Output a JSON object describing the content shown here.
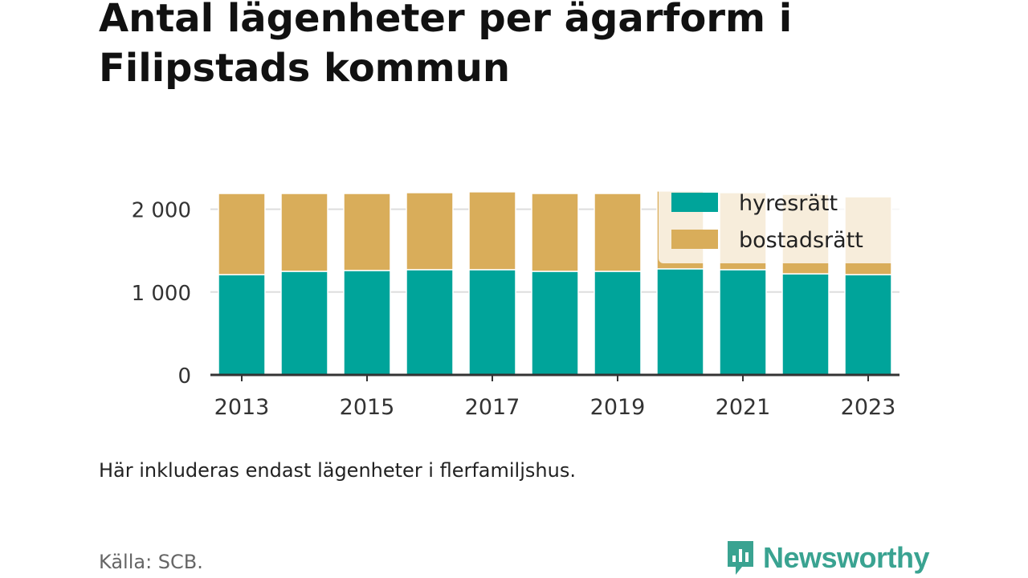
{
  "title": "Antal lägenheter per ägarform i Filipstads kommun",
  "note": "Här inkluderas endast lägenheter i flerfamiljshus.",
  "source": "Källa: SCB.",
  "brand": "Newsworthy",
  "colors": {
    "hyresratt": "#00a49a",
    "bostadsratt": "#d9ad5a",
    "grid": "#dddddd",
    "axis": "#333333",
    "brand": "#3aa391"
  },
  "chart_data": {
    "type": "bar",
    "stacked": true,
    "categories": [
      "2013",
      "2014",
      "2015",
      "2016",
      "2017",
      "2018",
      "2019",
      "2020",
      "2021",
      "2022",
      "2023"
    ],
    "x_tick_labels": [
      "2013",
      "2015",
      "2017",
      "2019",
      "2021",
      "2023"
    ],
    "y_ticks": [
      0,
      1000,
      2000
    ],
    "y_tick_labels": [
      "0",
      "1 000",
      "2 000"
    ],
    "ylim": [
      0,
      2200
    ],
    "grid": true,
    "legend_position": "top-right",
    "series": [
      {
        "name": "hyresrätt",
        "color": "#00a49a",
        "values": [
          1210,
          1250,
          1260,
          1270,
          1270,
          1250,
          1250,
          1280,
          1270,
          1220,
          1210
        ]
      },
      {
        "name": "bostadsrätt",
        "color": "#d9ad5a",
        "values": [
          980,
          940,
          930,
          930,
          940,
          940,
          940,
          940,
          930,
          960,
          940
        ]
      }
    ]
  }
}
